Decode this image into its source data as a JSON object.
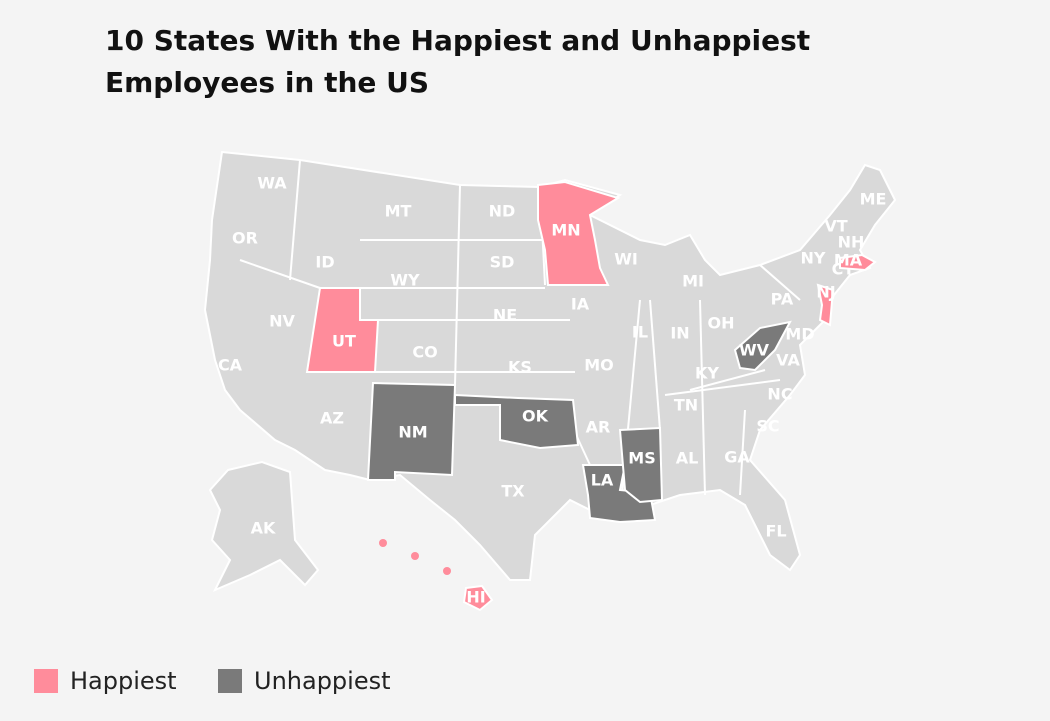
{
  "title": "10 States With the Happiest and Unhappiest Employees in the US",
  "base_color": "#d9d9d9",
  "states": [
    {
      "label": "WA"
    },
    {
      "label": "OR"
    },
    {
      "label": "CA"
    },
    {
      "label": "NV"
    },
    {
      "label": "ID"
    },
    {
      "label": "MT"
    },
    {
      "label": "WY"
    },
    {
      "label": "UT",
      "color": "#ff8c9b"
    },
    {
      "label": "AZ"
    },
    {
      "label": "CO"
    },
    {
      "label": "NM",
      "color": "#7a7a7a"
    },
    {
      "label": "ND"
    },
    {
      "label": "SD"
    },
    {
      "label": "NE"
    },
    {
      "label": "KS"
    },
    {
      "label": "OK",
      "color": "#7a7a7a"
    },
    {
      "label": "TX"
    },
    {
      "label": "MN",
      "color": "#ff8c9b"
    },
    {
      "label": "IA"
    },
    {
      "label": "MO"
    },
    {
      "label": "AR"
    },
    {
      "label": "LA",
      "color": "#7a7a7a"
    },
    {
      "label": "WI"
    },
    {
      "label": "IL"
    },
    {
      "label": "MI"
    },
    {
      "label": "IN"
    },
    {
      "label": "OH"
    },
    {
      "label": "KY"
    },
    {
      "label": "TN"
    },
    {
      "label": "MS",
      "color": "#7a7a7a"
    },
    {
      "label": "AL"
    },
    {
      "label": "GA"
    },
    {
      "label": "FL"
    },
    {
      "label": "SC"
    },
    {
      "label": "NC"
    },
    {
      "label": "VA"
    },
    {
      "label": "WV",
      "color": "#7a7a7a"
    },
    {
      "label": "PA"
    },
    {
      "label": "NY"
    },
    {
      "label": "NJ",
      "color": "#ff8c9b"
    },
    {
      "label": "MD"
    },
    {
      "label": "CT"
    },
    {
      "label": "MA",
      "color": "#ff8c9b"
    },
    {
      "label": "VT"
    },
    {
      "label": "NH"
    },
    {
      "label": "ME"
    },
    {
      "label": "AK"
    },
    {
      "label": "HI",
      "color": "#ff8c9b"
    }
  ],
  "legend": [
    {
      "label": "Happiest",
      "color": "#ff8c9b"
    },
    {
      "label": "Unhappiest",
      "color": "#7a7a7a"
    }
  ]
}
